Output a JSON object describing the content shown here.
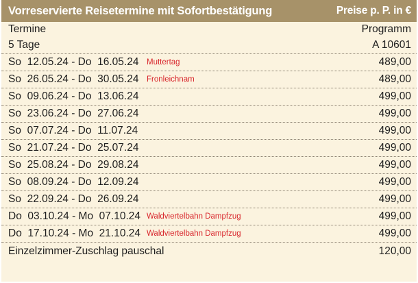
{
  "header": {
    "title": "Vorreservierte Reisetermine mit Sofortbestätigung",
    "price_label": "Preise p. P. in €"
  },
  "columns": {
    "left": "Termine",
    "right": "Programm"
  },
  "duration": {
    "label": "5 Tage",
    "code": "A 10601"
  },
  "dates": [
    {
      "range": "So  12.05.24 - Do  16.05.24",
      "note": "Muttertag",
      "price": "489,00"
    },
    {
      "range": "So  26.05.24 - Do  30.05.24",
      "note": "Fronleichnam",
      "price": "489,00"
    },
    {
      "range": "So  09.06.24 - Do  13.06.24",
      "note": "",
      "price": "499,00"
    },
    {
      "range": "So  23.06.24 - Do  27.06.24",
      "note": "",
      "price": "499,00"
    },
    {
      "range": "So  07.07.24 - Do  11.07.24",
      "note": "",
      "price": "499,00"
    },
    {
      "range": "So  21.07.24 - Do  25.07.24",
      "note": "",
      "price": "499,00"
    },
    {
      "range": "So  25.08.24 - Do  29.08.24",
      "note": "",
      "price": "499,00"
    },
    {
      "range": "So  08.09.24 - Do  12.09.24",
      "note": "",
      "price": "499,00"
    },
    {
      "range": "So  22.09.24 - Do  26.09.24",
      "note": "",
      "price": "499,00"
    },
    {
      "range": "Do  03.10.24 - Mo  07.10.24",
      "note": "Waldviertelbahn Dampfzug",
      "price": "499,00"
    },
    {
      "range": "Do  17.10.24 - Mo  21.10.24",
      "note": "Waldviertelbahn Dampfzug",
      "price": "499,00"
    }
  ],
  "supplement": {
    "label": "Einzelzimmer-Zuschlag pauschal",
    "price": "120,00"
  }
}
